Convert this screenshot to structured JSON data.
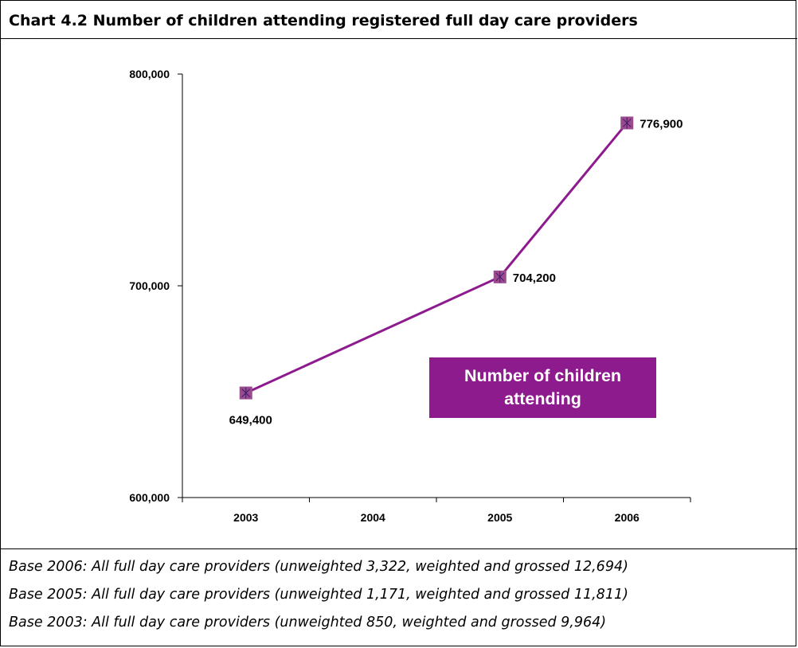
{
  "title": "Chart 4.2 Number of children attending registered full day care providers",
  "chart_data": {
    "type": "line",
    "categories": [
      "2003",
      "2004",
      "2005",
      "2006"
    ],
    "series": [
      {
        "name": "Number of children attending",
        "x": [
          "2003",
          "2005",
          "2006"
        ],
        "values": [
          649400,
          704200,
          776900
        ],
        "labels": [
          "649,400",
          "704,200",
          "776,900"
        ],
        "color": "#8e1b8e",
        "marker_color": "#9b4a8e"
      }
    ],
    "y_ticks": [
      "600,000",
      "700,000",
      "800,000"
    ],
    "y_tick_values": [
      600000,
      700000,
      800000
    ],
    "ylim": [
      600000,
      800000
    ],
    "xlabel": "",
    "ylabel": "",
    "grid": false,
    "legend": {
      "placement": "lower-right",
      "label": "Number of children attending",
      "background": "#8e1b8e",
      "text_color": "#ffffff"
    }
  },
  "notes": [
    "Base 2006: All full day care providers  (unweighted 3,322, weighted and grossed 12,694)",
    "Base 2005: All full day care providers  (unweighted 1,171, weighted and grossed 11,811)",
    "Base 2003: All full day care providers  (unweighted 850, weighted and grossed 9,964)"
  ]
}
